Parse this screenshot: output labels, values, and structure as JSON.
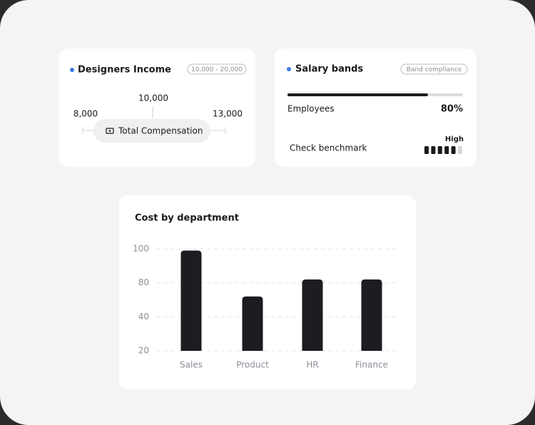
{
  "designers_income": {
    "title": "Designers Income",
    "badge": "10,000 - 20,000",
    "low": "8,000",
    "mid": "10,000",
    "high": "13,000",
    "button": "Total Compensation"
  },
  "salary_bands": {
    "title": "Salary bands",
    "badge": "Band compliance",
    "progress_label": "Employees",
    "progress": 80,
    "progress_label_value": "80%",
    "benchmark_label": "Check benchmark",
    "benchmark_level": "High",
    "benchmark_filled": 5,
    "benchmark_total": 6
  },
  "chart_data": {
    "type": "bar",
    "title": "Cost by department",
    "categories": [
      "Sales",
      "Product",
      "HR",
      "Finance"
    ],
    "values": [
      99,
      64,
      82,
      82
    ],
    "color": "#1c1c21",
    "ylim": [
      20,
      100
    ],
    "yticks": [
      20,
      40,
      80,
      100
    ],
    "grid": true
  }
}
